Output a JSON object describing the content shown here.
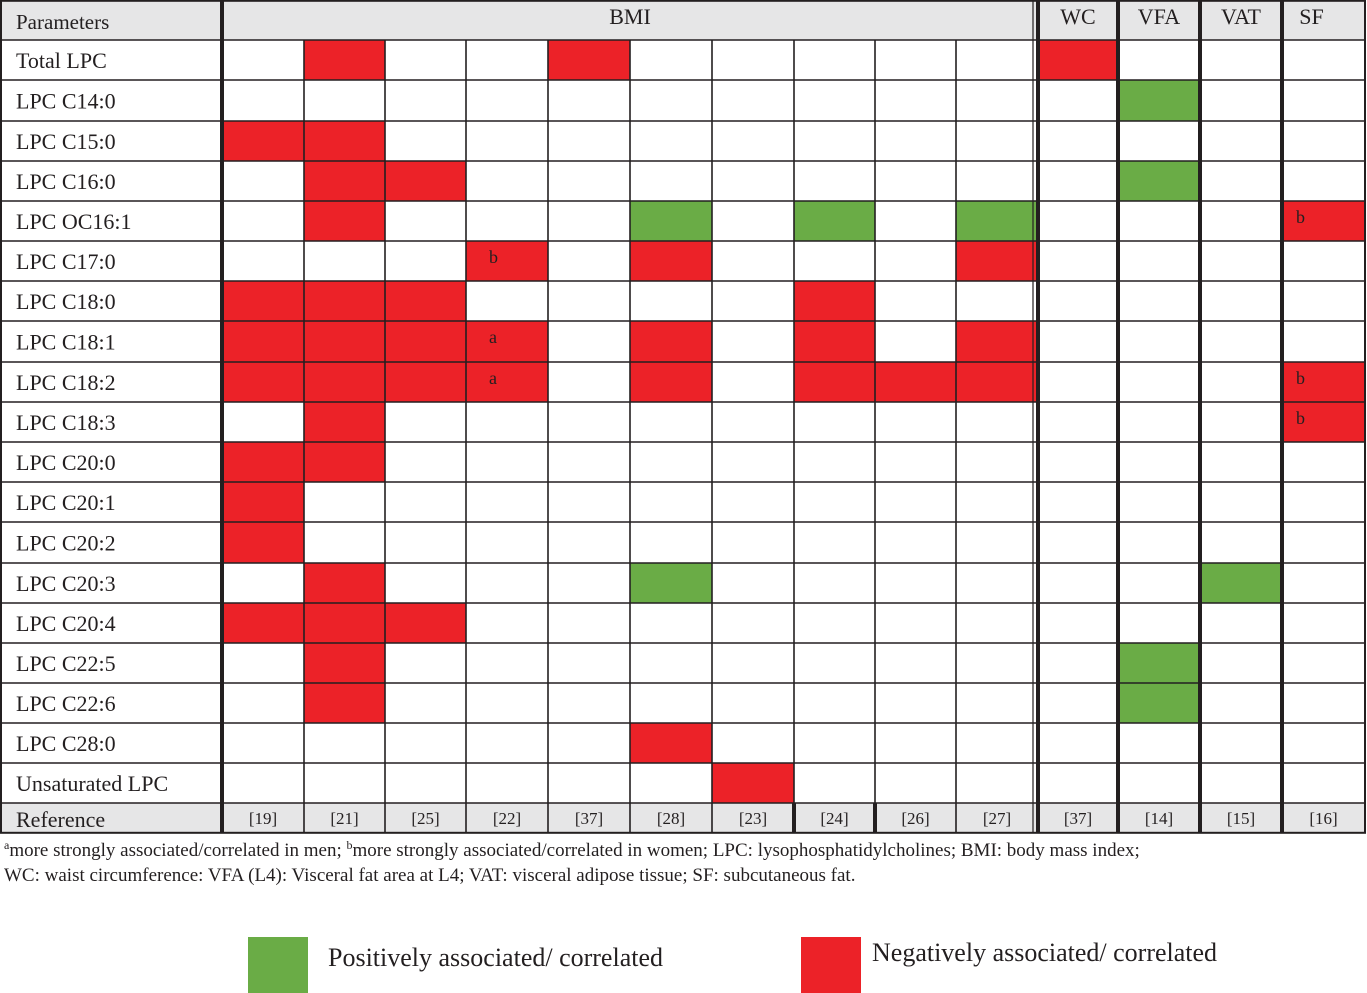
{
  "colors": {
    "positive": "#6aac46",
    "negative": "#ec2228",
    "header_bg": "#e6e6e7",
    "line": "#231f20"
  },
  "table": {
    "corner_label": "Parameters",
    "group_headers": [
      "BMI",
      "WC",
      "VFA",
      "VAT",
      "SF"
    ],
    "reference_label": "Reference",
    "references": [
      "[19]",
      "[21]",
      "[25]",
      "[22]",
      "[37]",
      "[28]",
      "[23]",
      "[24]",
      "[26]",
      "[27]",
      "[37]",
      "[14]",
      "[15]",
      "[16]"
    ],
    "rows": [
      {
        "label": "Total LPC",
        "cells": [
          "",
          "N",
          "",
          "",
          "N",
          "",
          "",
          "",
          "",
          "",
          "N",
          "",
          "",
          ""
        ]
      },
      {
        "label": "LPC C14:0",
        "cells": [
          "",
          "",
          "",
          "",
          "",
          "",
          "",
          "",
          "",
          "",
          "",
          "P",
          "",
          ""
        ]
      },
      {
        "label": "LPC C15:0",
        "cells": [
          "N",
          "N",
          "",
          "",
          "",
          "",
          "",
          "",
          "",
          "",
          "",
          "",
          "",
          ""
        ]
      },
      {
        "label": "LPC C16:0",
        "cells": [
          "",
          "N",
          "N",
          "",
          "",
          "",
          "",
          "",
          "",
          "",
          "",
          "P",
          "",
          ""
        ]
      },
      {
        "label": "LPC OC16:1",
        "cells": [
          "",
          "N",
          "",
          "",
          "",
          "P",
          "",
          "P",
          "",
          "P",
          "",
          "",
          "",
          "N"
        ]
      },
      {
        "label": "LPC C17:0",
        "cells": [
          "",
          "",
          "",
          "N",
          "",
          "N",
          "",
          "",
          "",
          "N",
          "",
          "",
          "",
          ""
        ]
      },
      {
        "label": "LPC C18:0",
        "cells": [
          "N",
          "N",
          "N",
          "",
          "",
          "",
          "",
          "N",
          "",
          "",
          "",
          "",
          "",
          ""
        ]
      },
      {
        "label": "LPC C18:1",
        "cells": [
          "N",
          "N",
          "N",
          "N",
          "",
          "N",
          "",
          "N",
          "",
          "N",
          "",
          "",
          "",
          ""
        ]
      },
      {
        "label": "LPC C18:2",
        "cells": [
          "N",
          "N",
          "N",
          "N",
          "",
          "N",
          "",
          "N",
          "N",
          "N",
          "",
          "",
          "",
          "N"
        ]
      },
      {
        "label": "LPC C18:3",
        "cells": [
          "",
          "N",
          "",
          "",
          "",
          "",
          "",
          "",
          "",
          "",
          "",
          "",
          "",
          "N"
        ]
      },
      {
        "label": "LPC C20:0",
        "cells": [
          "N",
          "N",
          "",
          "",
          "",
          "",
          "",
          "",
          "",
          "",
          "",
          "",
          "",
          ""
        ]
      },
      {
        "label": "LPC C20:1",
        "cells": [
          "N",
          "",
          "",
          "",
          "",
          "",
          "",
          "",
          "",
          "",
          "",
          "",
          "",
          ""
        ]
      },
      {
        "label": "LPC C20:2",
        "cells": [
          "N",
          "",
          "",
          "",
          "",
          "",
          "",
          "",
          "",
          "",
          "",
          "",
          "",
          ""
        ]
      },
      {
        "label": "LPC C20:3",
        "cells": [
          "",
          "N",
          "",
          "",
          "",
          "P",
          "",
          "",
          "",
          "",
          "",
          "",
          "P",
          ""
        ]
      },
      {
        "label": "LPC C20:4",
        "cells": [
          "N",
          "N",
          "N",
          "",
          "",
          "",
          "",
          "",
          "",
          "",
          "",
          "",
          "",
          ""
        ]
      },
      {
        "label": "LPC C22:5",
        "cells": [
          "",
          "N",
          "",
          "",
          "",
          "",
          "",
          "",
          "",
          "",
          "",
          "P",
          "",
          ""
        ]
      },
      {
        "label": "LPC C22:6",
        "cells": [
          "",
          "N",
          "",
          "",
          "",
          "",
          "",
          "",
          "",
          "",
          "",
          "P",
          "",
          ""
        ]
      },
      {
        "label": "LPC C28:0",
        "cells": [
          "",
          "",
          "",
          "",
          "",
          "N",
          "",
          "",
          "",
          "",
          "",
          "",
          "",
          ""
        ]
      },
      {
        "label": "Unsaturated LPC",
        "cells": [
          "",
          "",
          "",
          "",
          "",
          "",
          "N",
          "",
          "",
          "",
          "",
          "",
          "",
          ""
        ]
      }
    ],
    "cell_marks": [
      {
        "row": 4,
        "col": 13,
        "mark": "b"
      },
      {
        "row": 5,
        "col": 3,
        "mark": "b"
      },
      {
        "row": 7,
        "col": 3,
        "mark": "a"
      },
      {
        "row": 8,
        "col": 3,
        "mark": "a"
      },
      {
        "row": 8,
        "col": 13,
        "mark": "b"
      },
      {
        "row": 9,
        "col": 13,
        "mark": "b"
      }
    ]
  },
  "footnote": {
    "sup_a": "a",
    "part_a": "more strongly associated/correlated in men; ",
    "sup_b": "b",
    "part_b": "more strongly associated/correlated in women; LPC: lysophosphatidylcholines; BMI: body mass index;",
    "line2": "WC: waist circumference: VFA (L4): Visceral fat area at L4; VAT: visceral adipose tissue; SF: subcutaneous fat."
  },
  "legend": {
    "positive_label": "Positively associated/ correlated",
    "negative_label": "Negatively associated/ correlated"
  }
}
